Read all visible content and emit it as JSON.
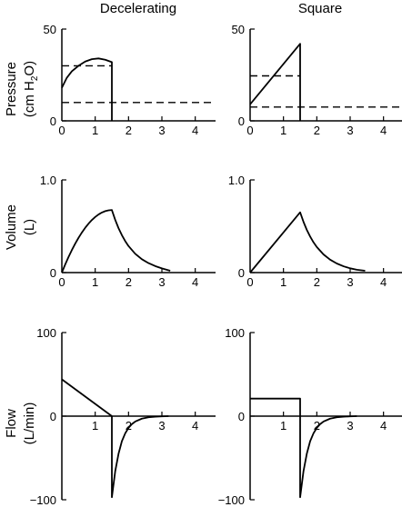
{
  "column_titles": [
    "Decelerating",
    "Square"
  ],
  "row_labels": [
    {
      "line1": "Pressure",
      "line2_pre": "(cm H",
      "line2_sub": "2",
      "line2_post": "O)"
    },
    {
      "line1": "Volume",
      "line2_pre": "(L)",
      "line2_sub": "",
      "line2_post": ""
    },
    {
      "line1": "Flow",
      "line2_pre": "(L/min)",
      "line2_sub": "",
      "line2_post": ""
    }
  ],
  "chart_data": [
    {
      "type": "line",
      "row": 0,
      "col": 0,
      "xlim": [
        0,
        4.5
      ],
      "ylim": [
        0,
        50
      ],
      "xticks": [
        0,
        1,
        2,
        3,
        4
      ],
      "yticks": [
        0,
        50
      ],
      "ytick_labels": [
        "0",
        "50"
      ],
      "series": [
        {
          "style": "solid",
          "x": [
            0,
            0.15,
            0.3,
            0.5,
            0.7,
            0.9,
            1.1,
            1.3,
            1.5,
            1.5,
            1.5
          ],
          "y": [
            18,
            23.5,
            27,
            30,
            32.3,
            33.6,
            34,
            33.3,
            32,
            30,
            0
          ]
        }
      ],
      "reference_lines": [
        {
          "style": "dashed",
          "y": 30,
          "x": [
            0,
            1.5
          ]
        },
        {
          "style": "dashed",
          "y": 10,
          "x": [
            0,
            4.5
          ]
        }
      ]
    },
    {
      "type": "line",
      "row": 0,
      "col": 1,
      "xlim": [
        0,
        4.5
      ],
      "ylim": [
        0,
        50
      ],
      "xticks": [
        0,
        1,
        2,
        3,
        4
      ],
      "yticks": [
        0,
        50
      ],
      "ytick_labels": [
        "0",
        "50"
      ],
      "series": [
        {
          "style": "solid",
          "x": [
            0,
            1.5,
            1.5
          ],
          "y": [
            9,
            42,
            0
          ]
        }
      ],
      "reference_lines": [
        {
          "style": "dashed",
          "y": 24.5,
          "x": [
            0,
            1.5
          ]
        },
        {
          "style": "dashed",
          "y": 7.5,
          "x": [
            0,
            4.5
          ]
        }
      ]
    },
    {
      "type": "line",
      "row": 1,
      "col": 0,
      "xlim": [
        0,
        4.5
      ],
      "ylim": [
        0,
        1.0
      ],
      "xticks": [
        0,
        1,
        2,
        3,
        4
      ],
      "yticks": [
        0,
        1.0
      ],
      "ytick_labels": [
        "0",
        "1.0"
      ],
      "series": [
        {
          "style": "solid",
          "x": [
            0,
            0.1,
            0.2,
            0.3,
            0.4,
            0.5,
            0.6,
            0.7,
            0.8,
            0.9,
            1.0,
            1.1,
            1.2,
            1.3,
            1.4,
            1.5,
            1.6,
            1.7,
            1.8,
            1.9,
            2.0,
            2.2,
            2.4,
            2.6,
            2.8,
            3.0,
            3.25
          ],
          "y": [
            0,
            0.087,
            0.168,
            0.243,
            0.312,
            0.375,
            0.432,
            0.483,
            0.528,
            0.567,
            0.6,
            0.627,
            0.648,
            0.663,
            0.672,
            0.675,
            0.569,
            0.479,
            0.404,
            0.34,
            0.286,
            0.203,
            0.144,
            0.102,
            0.07,
            0.045,
            0.02
          ]
        }
      ],
      "reference_lines": []
    },
    {
      "type": "line",
      "row": 1,
      "col": 1,
      "xlim": [
        0,
        4.5
      ],
      "ylim": [
        0,
        1.0
      ],
      "xticks": [
        0,
        1,
        2,
        3,
        4
      ],
      "yticks": [
        0,
        1.0
      ],
      "ytick_labels": [
        "0",
        "1.0"
      ],
      "series": [
        {
          "style": "solid",
          "x": [
            0,
            1.5,
            1.6,
            1.7,
            1.8,
            1.9,
            2.0,
            2.2,
            2.4,
            2.6,
            2.8,
            3.0,
            3.2,
            3.45
          ],
          "y": [
            0,
            0.65,
            0.548,
            0.461,
            0.389,
            0.327,
            0.276,
            0.196,
            0.139,
            0.098,
            0.068,
            0.046,
            0.031,
            0.02
          ]
        }
      ],
      "reference_lines": []
    },
    {
      "type": "line",
      "row": 2,
      "col": 0,
      "xlim": [
        0,
        4.5
      ],
      "ylim": [
        -100,
        100
      ],
      "xticks": [
        1,
        2,
        3,
        4
      ],
      "yticks": [
        -100,
        0,
        100
      ],
      "ytick_labels": [
        "−100",
        "0",
        "100"
      ],
      "series": [
        {
          "style": "solid",
          "x": [
            0,
            1.5
          ],
          "y": [
            44,
            0
          ]
        },
        {
          "style": "solid",
          "x": [
            1.5,
            1.5,
            1.6,
            1.7,
            1.8,
            1.9,
            2.0,
            2.1,
            2.2,
            2.4,
            2.6,
            2.8,
            3.0,
            3.2
          ],
          "y": [
            0,
            -97,
            -66,
            -45,
            -30,
            -20.6,
            -14,
            -9.5,
            -6.5,
            -3,
            -1.4,
            -0.6,
            -0.3,
            0
          ]
        }
      ],
      "reference_lines": []
    },
    {
      "type": "line",
      "row": 2,
      "col": 1,
      "xlim": [
        0,
        4.5
      ],
      "ylim": [
        -100,
        100
      ],
      "xticks": [
        1,
        2,
        3,
        4
      ],
      "yticks": [
        -100,
        0,
        100
      ],
      "ytick_labels": [
        "−100",
        "0",
        "100"
      ],
      "series": [
        {
          "style": "solid",
          "x": [
            0,
            1.5,
            1.5
          ],
          "y": [
            21,
            21,
            0
          ]
        },
        {
          "style": "solid",
          "x": [
            1.5,
            1.5,
            1.6,
            1.7,
            1.8,
            1.9,
            2.0,
            2.1,
            2.2,
            2.4,
            2.6,
            2.8,
            3.0,
            3.2
          ],
          "y": [
            0,
            -97,
            -66,
            -45,
            -30,
            -20.6,
            -14,
            -9.5,
            -6.5,
            -3,
            -1.4,
            -0.6,
            -0.3,
            0
          ]
        }
      ],
      "reference_lines": []
    }
  ]
}
